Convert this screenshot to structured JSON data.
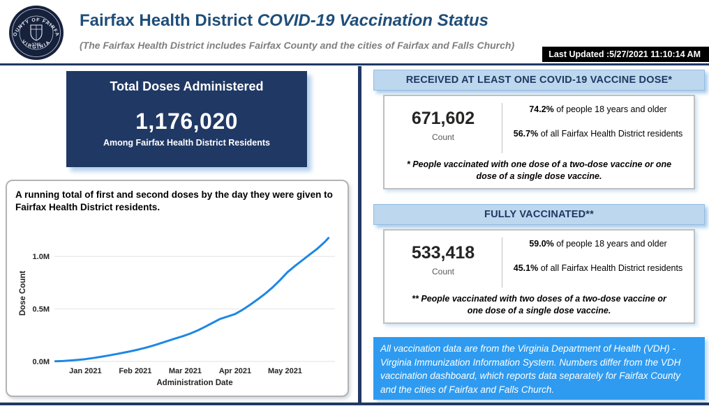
{
  "header": {
    "title_main": "Fairfax Health District",
    "title_italic": "COVID-19 Vaccination Status",
    "subtitle": "(The Fairfax Health District includes Fairfax County and the cities of Fairfax and Falls Church)",
    "last_updated": "Last Updated :5/27/2021 11:10:14 AM",
    "seal": {
      "top_text": "COUNTY OF FAIRFAX",
      "bottom_text": "VIRGINIA",
      "year": "1742"
    }
  },
  "totals": {
    "title": "Total Doses Administered",
    "value": "1,176,020",
    "caption": "Among Fairfax Health District Residents"
  },
  "chart_data": {
    "type": "line",
    "title": "A running total of first and second doses by the day they were given to Fairfax Health District residents.",
    "xlabel": "Administration Date",
    "ylabel": "Dose Count",
    "x_ticks": [
      0,
      1,
      2,
      3,
      4
    ],
    "x_tick_labels": [
      "Jan 2021",
      "Feb 2021",
      "Mar 2021",
      "Apr 2021",
      "May 2021"
    ],
    "y_ticks": [
      0,
      0.5,
      1.0
    ],
    "y_tick_labels": [
      "0.0M",
      "0.5M",
      "1.0M"
    ],
    "xlim": [
      -0.62,
      5.0
    ],
    "ylim": [
      0,
      1.3
    ],
    "grid": true,
    "line_color": "#1E87E5",
    "series": [
      {
        "name": "Running total of doses",
        "x": [
          -0.6,
          -0.45,
          -0.3,
          -0.15,
          0,
          0.15,
          0.3,
          0.45,
          0.6,
          0.75,
          0.9,
          1.05,
          1.2,
          1.35,
          1.5,
          1.65,
          1.8,
          1.95,
          2.1,
          2.25,
          2.4,
          2.55,
          2.7,
          2.85,
          3.0,
          3.15,
          3.3,
          3.45,
          3.6,
          3.75,
          3.9,
          4.05,
          4.2,
          4.35,
          4.5,
          4.65,
          4.8,
          4.87
        ],
        "values": [
          0.001,
          0.004,
          0.009,
          0.015,
          0.022,
          0.032,
          0.043,
          0.055,
          0.068,
          0.082,
          0.096,
          0.112,
          0.13,
          0.15,
          0.172,
          0.195,
          0.218,
          0.24,
          0.265,
          0.295,
          0.33,
          0.368,
          0.405,
          0.428,
          0.452,
          0.492,
          0.54,
          0.59,
          0.645,
          0.705,
          0.775,
          0.85,
          0.91,
          0.965,
          1.02,
          1.075,
          1.14,
          1.176
        ]
      }
    ]
  },
  "one_dose": {
    "header": "RECEIVED AT LEAST ONE COVID-19 VACCINE DOSE*",
    "count": "671,602",
    "count_label": "Count",
    "pct_adults_value": "74.2%",
    "pct_adults_text": " of people 18 years and older",
    "pct_all_value": "56.7%",
    "pct_all_text": " of all Fairfax Health District residents",
    "footnote": "* People vaccinated with one dose of a two-dose vaccine or one dose of a single dose vaccine."
  },
  "fully_vaccinated": {
    "header": "FULLY VACCINATED**",
    "count": "533,418",
    "count_label": "Count",
    "pct_adults_value": "59.0%",
    "pct_adults_text": " of people 18 years and older",
    "pct_all_value": "45.1%",
    "pct_all_text": " of all Fairfax Health District residents",
    "footnote": "** People vaccinated with two doses of a two-dose vaccine or one dose of a single dose vaccine."
  },
  "source_note": "All vaccination data are from the Virginia Department of Health (VDH) - Virginia Immunization Information System. Numbers differ from the VDH vaccination dashboard, which reports data separately for Fairfax County and the cities of Fairfax and Falls Church.",
  "colors": {
    "navy": "#1F3864",
    "title_blue": "#1F4E79",
    "light_blue_bar": "#BDD7EE",
    "info_blue": "#2E9BF0",
    "chart_line": "#1E87E5"
  }
}
